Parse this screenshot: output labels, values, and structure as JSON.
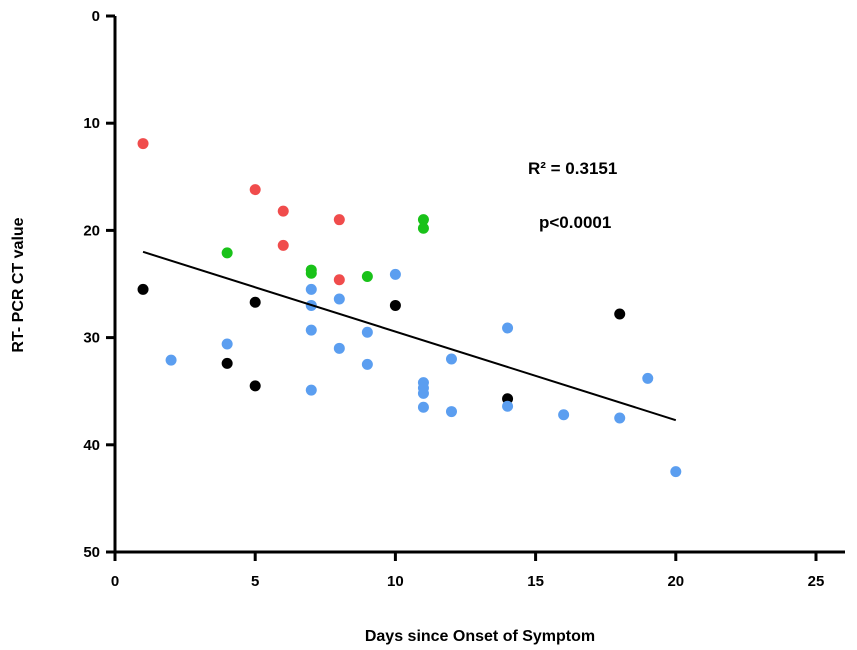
{
  "chart_data": {
    "type": "scatter",
    "xlabel": "Days since Onset of Symptom",
    "ylabel": "RT- PCR CT value",
    "xlim": [
      0,
      25
    ],
    "ylim": [
      0,
      50
    ],
    "y_axis_inverted": true,
    "x_ticks": [
      "0",
      "5",
      "10",
      "15",
      "20",
      "25"
    ],
    "y_ticks": [
      "0",
      "10",
      "20",
      "30",
      "40",
      "50"
    ],
    "grid": false,
    "legend": "none",
    "annotations": [
      "R² = 0.3151",
      "p<0.0001"
    ],
    "colors": {
      "red": "#f04c4c",
      "green": "#19c219",
      "black": "#000000",
      "blue": "#5b9ef0",
      "regression_line": "#000000"
    },
    "series": [
      {
        "color_key": "red",
        "points": [
          {
            "x": 1,
            "y": 11.9
          },
          {
            "x": 5,
            "y": 16.2
          },
          {
            "x": 6,
            "y": 18.2
          },
          {
            "x": 6,
            "y": 21.4
          },
          {
            "x": 8,
            "y": 19.0
          },
          {
            "x": 8,
            "y": 24.6
          }
        ]
      },
      {
        "color_key": "green",
        "points": [
          {
            "x": 4,
            "y": 22.1
          },
          {
            "x": 7,
            "y": 23.7
          },
          {
            "x": 7,
            "y": 24.0
          },
          {
            "x": 9,
            "y": 24.3
          },
          {
            "x": 11,
            "y": 19.0
          },
          {
            "x": 11,
            "y": 19.8
          }
        ]
      },
      {
        "color_key": "black",
        "points": [
          {
            "x": 1,
            "y": 25.5
          },
          {
            "x": 4,
            "y": 32.4
          },
          {
            "x": 5,
            "y": 26.7
          },
          {
            "x": 5,
            "y": 34.5
          },
          {
            "x": 10,
            "y": 27.0
          },
          {
            "x": 14,
            "y": 35.7
          },
          {
            "x": 18,
            "y": 27.8
          }
        ]
      },
      {
        "color_key": "blue",
        "points": [
          {
            "x": 2,
            "y": 32.1
          },
          {
            "x": 4,
            "y": 30.6
          },
          {
            "x": 7,
            "y": 25.5
          },
          {
            "x": 7,
            "y": 27.0
          },
          {
            "x": 7,
            "y": 29.3
          },
          {
            "x": 7,
            "y": 34.9
          },
          {
            "x": 8,
            "y": 26.4
          },
          {
            "x": 8,
            "y": 31.0
          },
          {
            "x": 9,
            "y": 29.5
          },
          {
            "x": 9,
            "y": 32.5
          },
          {
            "x": 10,
            "y": 24.1
          },
          {
            "x": 11,
            "y": 34.2
          },
          {
            "x": 11,
            "y": 34.7
          },
          {
            "x": 11,
            "y": 35.2
          },
          {
            "x": 11,
            "y": 36.5
          },
          {
            "x": 12,
            "y": 32.0
          },
          {
            "x": 12,
            "y": 36.9
          },
          {
            "x": 14,
            "y": 29.1
          },
          {
            "x": 14,
            "y": 36.4
          },
          {
            "x": 16,
            "y": 37.2
          },
          {
            "x": 18,
            "y": 37.5
          },
          {
            "x": 19,
            "y": 33.8
          },
          {
            "x": 20,
            "y": 42.5
          }
        ]
      }
    ],
    "regression_line": {
      "x": [
        1,
        20
      ],
      "y": [
        22.0,
        37.7
      ]
    }
  }
}
